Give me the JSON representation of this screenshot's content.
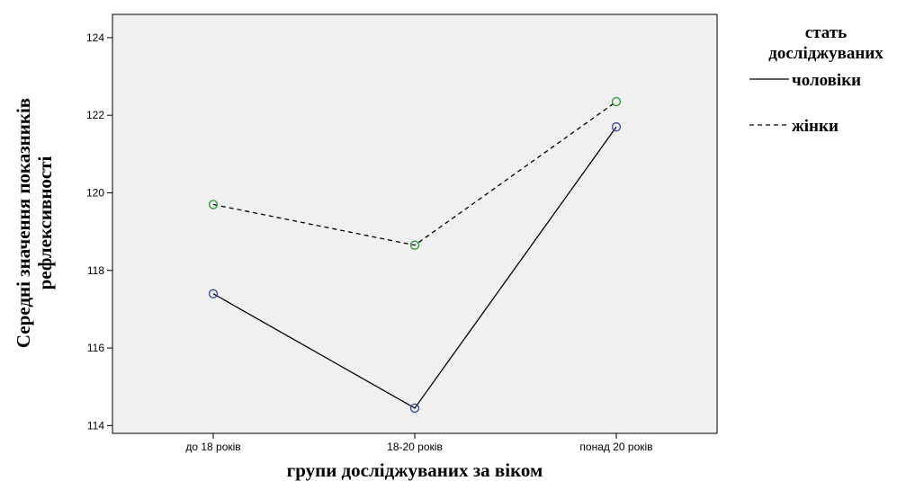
{
  "chart_data": {
    "type": "line",
    "title": "",
    "xlabel": "групи досліджуваних за віком",
    "ylabel_lines": [
      "Середні значення показників",
      "рефлексивності"
    ],
    "categories": [
      "до 18 років",
      "18-20 років",
      "понад 20 років"
    ],
    "ylim": [
      113.8,
      124.6
    ],
    "yticks": [
      114,
      116,
      118,
      120,
      122,
      124
    ],
    "grid": false,
    "legend": {
      "position": "right",
      "title_lines": [
        "стать",
        "досліджуваних"
      ],
      "entries": [
        "чоловіки",
        "жінки"
      ]
    },
    "series": [
      {
        "name": "чоловіки",
        "values": [
          117.4,
          114.45,
          121.7
        ],
        "line_style": "solid",
        "line_color": "#000000",
        "marker_color": "#3d4ea5"
      },
      {
        "name": "жінки",
        "values": [
          119.7,
          118.65,
          122.35
        ],
        "line_style": "dashed",
        "line_color": "#000000",
        "marker_color": "#2e9e3a"
      }
    ],
    "plot_background": "#f0f0f0"
  }
}
